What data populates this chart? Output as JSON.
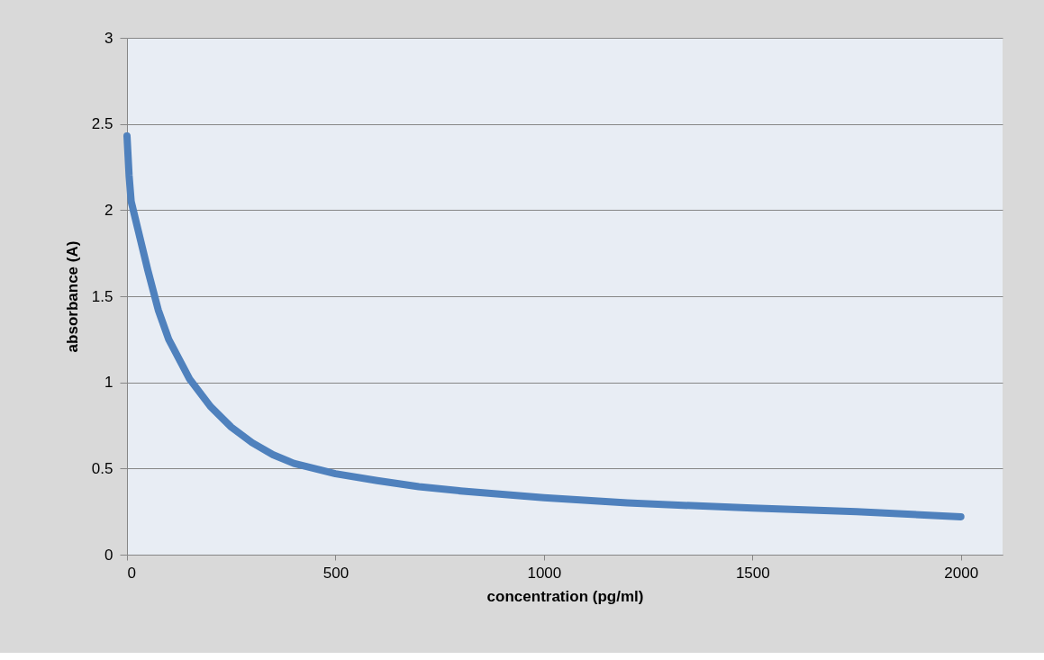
{
  "chart_data": {
    "type": "line",
    "xlabel": "concentration (pg/ml)",
    "ylabel": "absorbance (A)",
    "x": [
      0,
      5,
      10,
      25,
      50,
      75,
      100,
      150,
      200,
      250,
      300,
      350,
      400,
      500,
      600,
      700,
      800,
      1000,
      1200,
      1500,
      1750,
      2000
    ],
    "series": [
      {
        "color": "#4f81bd",
        "values": [
          2.43,
          2.2,
          2.05,
          1.9,
          1.65,
          1.42,
          1.25,
          1.02,
          0.86,
          0.74,
          0.65,
          0.58,
          0.53,
          0.47,
          0.43,
          0.395,
          0.37,
          0.33,
          0.3,
          0.27,
          0.25,
          0.22
        ]
      }
    ],
    "xlim": [
      0,
      2100
    ],
    "xticks": [
      0,
      500,
      1000,
      1500,
      2000
    ],
    "ylim": [
      0,
      3
    ],
    "yticks": [
      0,
      0.5,
      1,
      1.5,
      2,
      2.5,
      3
    ],
    "grid": "y",
    "legend": false,
    "marker": "none",
    "line_style": "solid"
  }
}
